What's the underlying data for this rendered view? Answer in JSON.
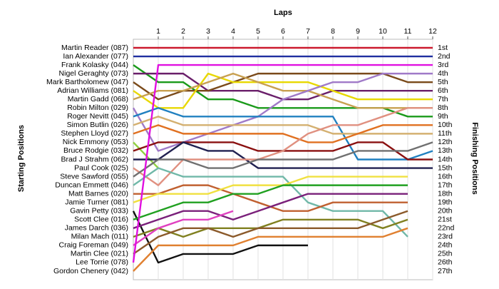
{
  "chart_data": {
    "type": "line",
    "xlabel": "Laps",
    "ylabel": "Starting Positions",
    "y2label": "Finishing Positions",
    "x": [
      0,
      1,
      2,
      3,
      4,
      5,
      6,
      7,
      8,
      9,
      10,
      11,
      12
    ],
    "xlim": [
      0,
      12
    ],
    "xticks": [
      1,
      2,
      3,
      4,
      5,
      6,
      7,
      8,
      9,
      10,
      11,
      12
    ],
    "ylim": [
      1,
      27
    ],
    "inverted": true,
    "grid": true,
    "y_labels": [
      "Martin Reader (087)",
      "Ian Alexander (077)",
      "Frank Kolasky (044)",
      "Nigel Geraghty (073)",
      "Mark Bartholomew (047)",
      "Adrian Williams (081)",
      "Martin Gadd (068)",
      "Robin Milton (029)",
      "Roger Nevitt (045)",
      "Simon Butlin (026)",
      "Stephen Lloyd (027)",
      "Nick Emmony (053)",
      "Bruce Rodgie (032)",
      "Brad J Strahm (062)",
      "Paul Cook (025)",
      "Steve Sawford (055)",
      "Duncan Emmett (046)",
      "Matt Barnes (020)",
      "Jamie Turner (081)",
      "Gavin Petty (033)",
      "Scott Clee (016)",
      "James Darch (036)",
      "Milan Mach (011)",
      "Craig Foreman (049)",
      "Martin Clee (021)",
      "Lee Torrie (078)",
      "Gordon Chenery (042)"
    ],
    "y2_labels": [
      "1st",
      "2nd",
      "3rd",
      "4th",
      "5th",
      "6th",
      "7th",
      "8th",
      "9th",
      "10th",
      "11th",
      "12th",
      "13th",
      "14th",
      "15th",
      "16th",
      "17th",
      "18th",
      "19th",
      "20th",
      "21st",
      "22nd",
      "23rd",
      "24th",
      "25th",
      "26th",
      "27th"
    ],
    "series": [
      {
        "color": "#cc1a2e",
        "values": [
          1,
          1,
          1,
          1,
          1,
          1,
          1,
          1,
          1,
          1,
          1,
          1,
          1
        ]
      },
      {
        "color": "#1f2fa0",
        "values": [
          2,
          2,
          2,
          2,
          2,
          2,
          2,
          2,
          2,
          2,
          2,
          2,
          2
        ]
      },
      {
        "color": "#1a9a1a",
        "values": [
          3,
          5,
          5,
          7,
          7,
          8,
          8,
          8,
          8,
          8,
          8,
          9,
          9
        ]
      },
      {
        "color": "#6a1f6a",
        "values": [
          4,
          4,
          4,
          6,
          6,
          6,
          7,
          7,
          6,
          6,
          6,
          6,
          6
        ]
      },
      {
        "color": "#7a4a1a",
        "values": [
          5,
          7,
          6,
          6,
          5,
          4,
          4,
          4,
          4,
          4,
          4,
          5,
          5
        ]
      },
      {
        "color": "#e8d800",
        "values": [
          6,
          8,
          8,
          4,
          5,
          5,
          5,
          5,
          6,
          7,
          7,
          7,
          7
        ]
      },
      {
        "color": "#c8a050",
        "values": [
          7,
          6,
          6,
          5,
          4,
          5,
          6,
          6,
          7,
          8,
          8,
          8,
          8
        ]
      },
      {
        "color": "#a07ac8",
        "values": [
          8,
          13,
          12,
          11,
          10,
          9,
          7,
          6,
          5,
          5,
          4,
          4,
          4
        ]
      },
      {
        "color": "#2080c0",
        "values": [
          9,
          8,
          9,
          9,
          9,
          9,
          9,
          9,
          9,
          14,
          14,
          14,
          13
        ]
      },
      {
        "color": "#d4b070",
        "values": [
          10,
          9,
          10,
          10,
          10,
          10,
          10,
          10,
          11,
          11,
          11,
          11,
          11
        ]
      },
      {
        "color": "#e07020",
        "values": [
          11,
          10,
          11,
          11,
          11,
          11,
          11,
          12,
          12,
          11,
          10,
          10,
          10
        ]
      },
      {
        "color": "#90d040",
        "values": [
          12,
          15,
          null,
          null,
          null,
          null,
          null,
          null,
          null,
          null,
          null,
          null,
          null
        ]
      },
      {
        "color": "#8a1010",
        "values": [
          13,
          12,
          12,
          12,
          12,
          13,
          13,
          13,
          13,
          12,
          12,
          14,
          14
        ]
      },
      {
        "color": "#202050",
        "values": [
          14,
          14,
          12,
          13,
          13,
          15,
          15,
          15,
          15,
          15,
          15,
          15,
          15
        ]
      },
      {
        "color": "#e09080",
        "values": [
          15,
          17,
          14,
          14,
          14,
          14,
          13,
          11,
          10,
          10,
          9,
          8,
          8
        ]
      },
      {
        "color": "#707070",
        "values": [
          16,
          14,
          14,
          15,
          15,
          14,
          14,
          14,
          14,
          13,
          13,
          13,
          12
        ]
      },
      {
        "color": "#70b8a8",
        "values": [
          17,
          15,
          16,
          16,
          16,
          16,
          16,
          19,
          20,
          20,
          20,
          23,
          null
        ]
      },
      {
        "color": "#c06030",
        "values": [
          18,
          18,
          17,
          17,
          18,
          19,
          20,
          20,
          19,
          19,
          19,
          19,
          null
        ]
      },
      {
        "color": "#f0e040",
        "values": [
          19,
          18,
          18,
          18,
          17,
          17,
          17,
          16,
          16,
          16,
          16,
          16,
          null
        ]
      },
      {
        "color": "#111111",
        "values": [
          20,
          26,
          25,
          25,
          25,
          24,
          24,
          24,
          null,
          null,
          null,
          null,
          null
        ]
      },
      {
        "color": "#20a020",
        "values": [
          21,
          20,
          19,
          19,
          18,
          18,
          17,
          17,
          17,
          17,
          17,
          17,
          null
        ]
      },
      {
        "color": "#7a207a",
        "values": [
          22,
          21,
          20,
          20,
          21,
          20,
          19,
          18,
          18,
          18,
          18,
          18,
          null
        ]
      },
      {
        "color": "#808020",
        "values": [
          23,
          22,
          23,
          22,
          22,
          22,
          21,
          21,
          21,
          21,
          22,
          21,
          null
        ]
      },
      {
        "color": "#e040c0",
        "values": [
          24,
          22,
          21,
          21,
          20,
          null,
          null,
          null,
          null,
          null,
          null,
          null,
          null
        ]
      },
      {
        "color": "#8b5a2b",
        "values": [
          25,
          23,
          22,
          22,
          23,
          22,
          22,
          22,
          22,
          22,
          21,
          20,
          null
        ]
      },
      {
        "color": "#e010e0",
        "values": [
          26,
          3,
          3,
          3,
          3,
          3,
          3,
          3,
          3,
          3,
          3,
          3,
          3
        ]
      },
      {
        "color": "#e08030",
        "values": [
          27,
          24,
          24,
          24,
          24,
          23,
          23,
          23,
          23,
          23,
          23,
          22,
          null
        ]
      }
    ]
  }
}
